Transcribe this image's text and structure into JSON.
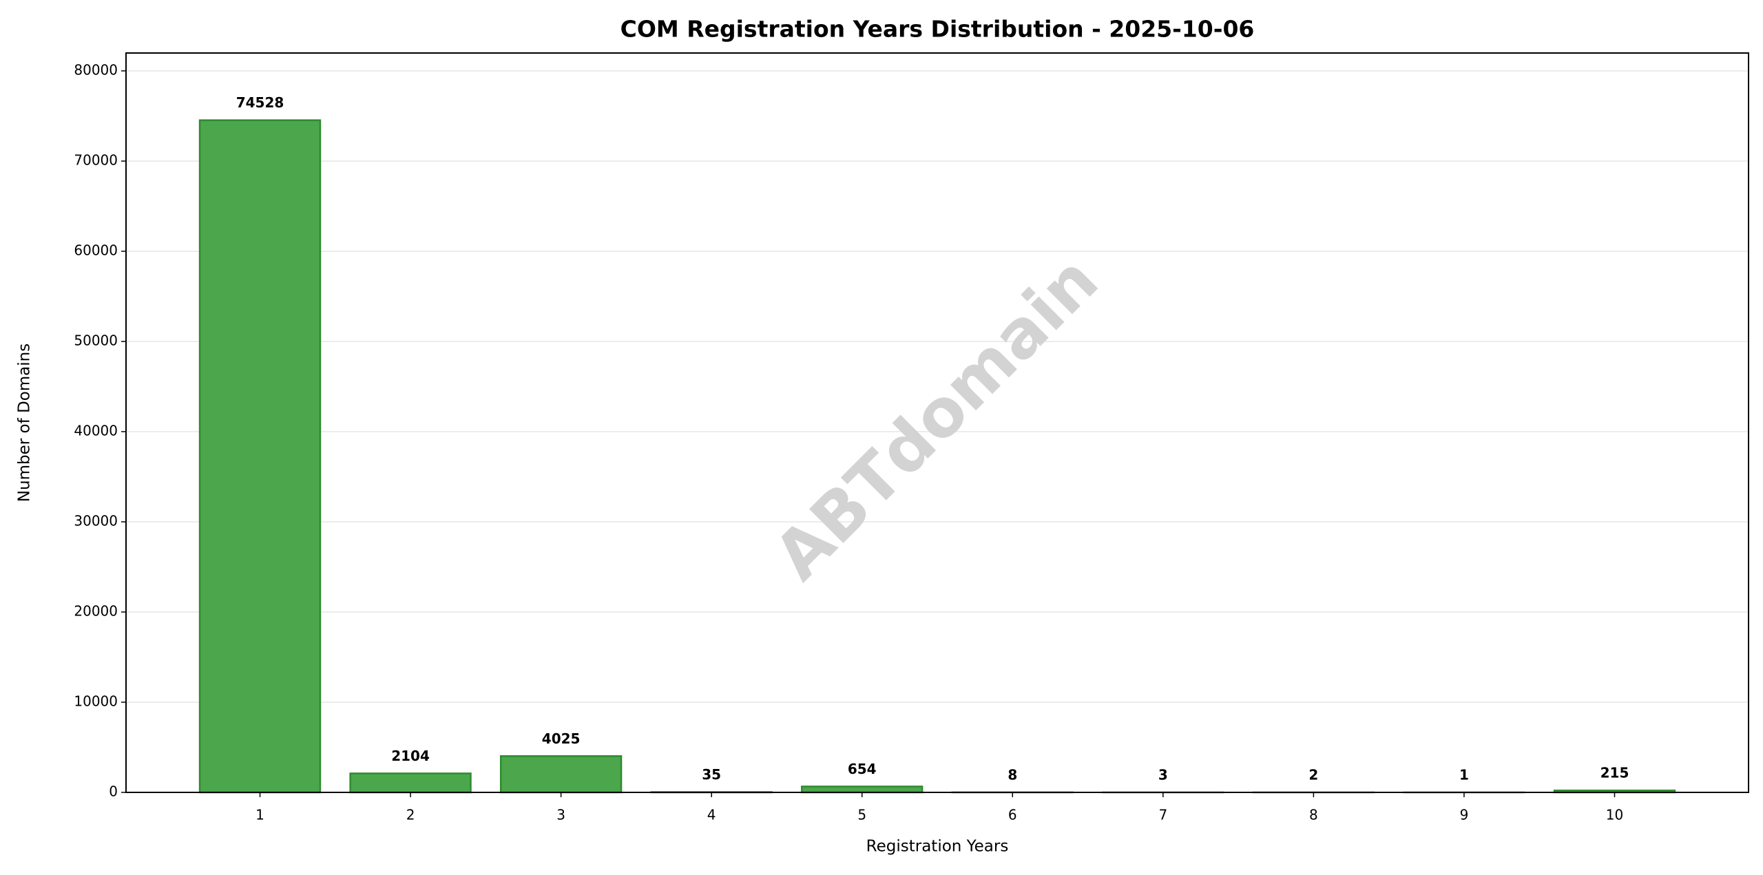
{
  "chart_data": {
    "type": "bar",
    "title": "COM Registration Years Distribution - 2025-10-06",
    "x_label": "Registration Years",
    "y_label": "Number of Domains",
    "watermark": "ABTdomain",
    "categories": [
      "1",
      "2",
      "3",
      "4",
      "5",
      "6",
      "7",
      "8",
      "9",
      "10"
    ],
    "values": [
      74528,
      2104,
      4025,
      35,
      654,
      8,
      3,
      2,
      1,
      215
    ],
    "color": "#4ca64c",
    "edge_color": "#2e8b2e",
    "ylim": [
      0,
      81981
    ],
    "yticks": [
      0,
      10000,
      20000,
      30000,
      40000,
      50000,
      60000,
      70000,
      80000
    ],
    "grid": true
  }
}
